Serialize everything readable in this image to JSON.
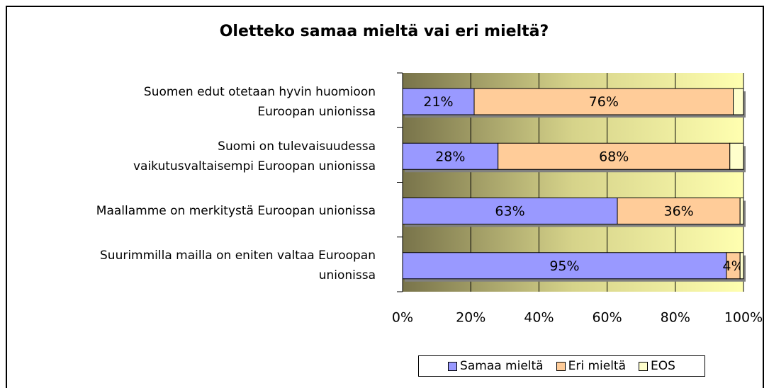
{
  "chart_data": {
    "type": "stacked-bar-horizontal",
    "title": "Oletteko samaa mieltä vai eri mieltä?",
    "categories": [
      "Suomen edut otetaan hyvin huomioon\nEuroopan unionissa",
      "Suomi on tulevaisuudessa\nvaikutusvaltaisempi Euroopan unionissa",
      "Maallamme on merkitystä Euroopan unionissa",
      "Suurimmilla mailla on eniten valtaa Euroopan\nunionissa"
    ],
    "series": [
      {
        "name": "Samaa mieltä",
        "color": "#9999ff",
        "values": [
          21,
          28,
          63,
          95
        ],
        "value_labels": [
          "21%",
          "28%",
          "63%",
          "95%"
        ]
      },
      {
        "name": "Eri mieltä",
        "color": "#ffcc99",
        "values": [
          76,
          68,
          36,
          4
        ],
        "value_labels": [
          "76%",
          "68%",
          "36%",
          "4%"
        ]
      },
      {
        "name": "EOS",
        "color": "#ffffcc",
        "values": [
          3,
          4,
          1,
          1
        ]
      }
    ],
    "xlim": [
      0,
      100
    ],
    "xticks": [
      {
        "value": 0,
        "label": "0%"
      },
      {
        "value": 20,
        "label": "20%"
      },
      {
        "value": 40,
        "label": "40%"
      },
      {
        "value": 60,
        "label": "60%"
      },
      {
        "value": 80,
        "label": "80%"
      },
      {
        "value": 100,
        "label": "100%"
      }
    ],
    "grid": true,
    "legend": "bottom"
  }
}
